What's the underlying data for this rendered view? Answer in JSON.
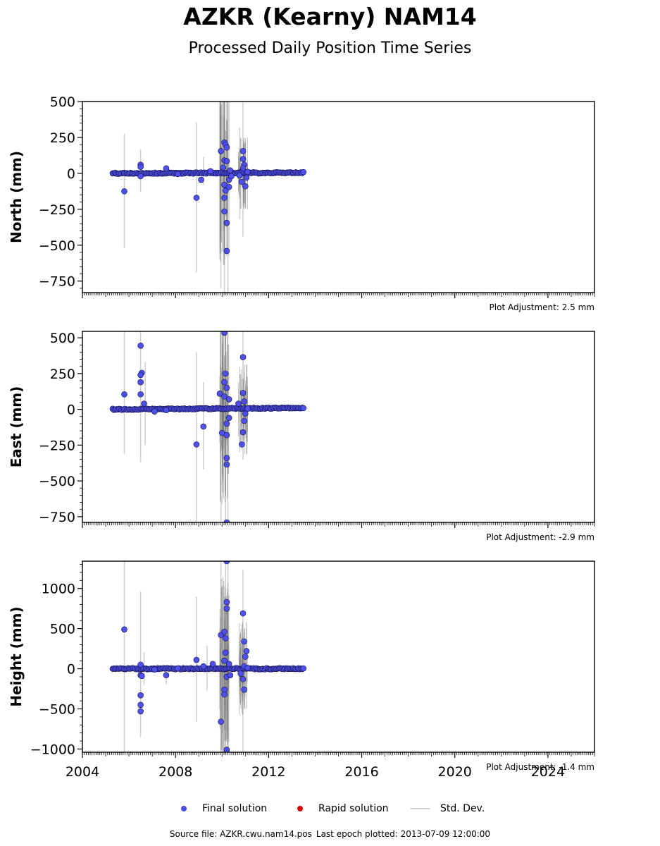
{
  "title": "AZKR (Kearny) NAM14",
  "subtitle": "Processed Daily Position Time Series",
  "legend": {
    "final_label": "Final solution",
    "rapid_label": "Rapid solution",
    "std_label": "Std. Dev.",
    "final_color": "#4a4ae6",
    "rapid_color": "#e00000",
    "std_color": "#cfcfcf"
  },
  "footer": {
    "source": "Source file: AZKR.cwu.nam14.pos",
    "last_epoch": "Last epoch plotted: 2013-07-09 12:00:00"
  },
  "colors": {
    "point_fill": "#5050f0",
    "point_edge": "#101040",
    "errbar": "#7a7a7a"
  },
  "chart_data": [
    {
      "type": "scatter",
      "name": "north",
      "ylabel": "North (mm)",
      "adjustment": "Plot Adjustment: 2.5 mm",
      "xlim": [
        2004,
        2026
      ],
      "ylim": [
        -830,
        500
      ],
      "yticks": [
        500,
        250,
        0,
        -250,
        -500,
        -750
      ],
      "ytick_labels": [
        "500",
        "250",
        "0",
        "−250",
        "−500",
        "−750"
      ],
      "series": [
        {
          "values": [
            [
              2005.8,
              -125
            ],
            [
              2006.5,
              60
            ],
            [
              2006.5,
              45
            ],
            [
              2006.5,
              -20
            ],
            [
              2007.6,
              35
            ],
            [
              2008.1,
              -5
            ],
            [
              2008.9,
              -170
            ],
            [
              2009.1,
              -45
            ],
            [
              2009.5,
              15
            ],
            [
              2009.95,
              155
            ],
            [
              2010.1,
              215
            ],
            [
              2010.15,
              200
            ],
            [
              2010.2,
              180
            ],
            [
              2010.05,
              40
            ],
            [
              2010.1,
              90
            ],
            [
              2010.2,
              85
            ],
            [
              2010.1,
              -80
            ],
            [
              2010.15,
              -120
            ],
            [
              2010.1,
              -170
            ],
            [
              2010.1,
              -265
            ],
            [
              2010.2,
              -345
            ],
            [
              2010.2,
              -540
            ],
            [
              2010.3,
              -45
            ],
            [
              2010.3,
              -95
            ],
            [
              2010.35,
              20
            ],
            [
              2010.4,
              -20
            ],
            [
              2010.9,
              155
            ],
            [
              2010.9,
              100
            ],
            [
              2010.95,
              60
            ],
            [
              2010.9,
              35
            ],
            [
              2010.85,
              -60
            ],
            [
              2011.0,
              -90
            ],
            [
              2011.05,
              -30
            ],
            [
              2010.75,
              -15
            ],
            [
              2011.1,
              10
            ]
          ]
        }
      ],
      "trend": [
        [
          2005.3,
          0
        ],
        [
          2013.5,
          5
        ]
      ],
      "std_dev_bars": [
        [
          2005.8,
          -520,
          275
        ],
        [
          2006.5,
          -130,
          165
        ],
        [
          2008.9,
          -690,
          355
        ],
        [
          2009.2,
          -80,
          115
        ],
        [
          2009.95,
          -800,
          500
        ],
        [
          2010.1,
          -830,
          500
        ],
        [
          2010.25,
          -830,
          500
        ],
        [
          2010.9,
          -440,
          500
        ],
        [
          2011.0,
          -240,
          220
        ]
      ]
    },
    {
      "type": "scatter",
      "name": "east",
      "ylabel": "East (mm)",
      "adjustment": "Plot Adjustment: -2.9 mm",
      "xlim": [
        2004,
        2026
      ],
      "ylim": [
        -790,
        545
      ],
      "yticks": [
        500,
        250,
        0,
        -250,
        -500,
        -750
      ],
      "ytick_labels": [
        "500",
        "250",
        "0",
        "−250",
        "−500",
        "−750"
      ],
      "series": [
        {
          "values": [
            [
              2005.8,
              105
            ],
            [
              2006.5,
              445
            ],
            [
              2006.55,
              255
            ],
            [
              2006.5,
              240
            ],
            [
              2006.5,
              190
            ],
            [
              2006.5,
              105
            ],
            [
              2006.65,
              40
            ],
            [
              2007.1,
              -15
            ],
            [
              2007.6,
              -5
            ],
            [
              2008.9,
              -245
            ],
            [
              2009.2,
              -120
            ],
            [
              2009.9,
              110
            ],
            [
              2010.0,
              -165
            ],
            [
              2010.1,
              535
            ],
            [
              2010.15,
              250
            ],
            [
              2010.1,
              190
            ],
            [
              2010.2,
              150
            ],
            [
              2010.1,
              90
            ],
            [
              2010.2,
              -100
            ],
            [
              2010.2,
              -180
            ],
            [
              2010.2,
              -340
            ],
            [
              2010.2,
              -385
            ],
            [
              2010.2,
              -790
            ],
            [
              2010.3,
              70
            ],
            [
              2010.3,
              -60
            ],
            [
              2010.9,
              365
            ],
            [
              2010.9,
              115
            ],
            [
              2010.95,
              55
            ],
            [
              2011.0,
              -30
            ],
            [
              2010.95,
              -80
            ],
            [
              2010.9,
              -160
            ],
            [
              2010.85,
              -245
            ],
            [
              2010.7,
              40
            ],
            [
              2011.1,
              5
            ]
          ]
        }
      ],
      "trend": [
        [
          2005.3,
          0
        ],
        [
          2013.5,
          10
        ]
      ],
      "std_dev_bars": [
        [
          2005.8,
          -310,
          545
        ],
        [
          2006.5,
          -370,
          545
        ],
        [
          2006.7,
          -250,
          330
        ],
        [
          2008.9,
          -790,
          400
        ],
        [
          2009.2,
          -420,
          190
        ],
        [
          2009.95,
          -790,
          545
        ],
        [
          2010.15,
          -790,
          545
        ],
        [
          2010.25,
          -790,
          545
        ],
        [
          2010.9,
          -350,
          545
        ]
      ]
    },
    {
      "type": "scatter",
      "name": "height",
      "ylabel": "Height (mm)",
      "xlabel_ticks": [
        "2004",
        "2008",
        "2012",
        "2016",
        "2020",
        "2024"
      ],
      "xticks": [
        2004,
        2008,
        2012,
        2016,
        2020,
        2024
      ],
      "adjustment": "Plot Adjustment: -1.4 mm",
      "xlim": [
        2004,
        2026
      ],
      "ylim": [
        -1040,
        1340
      ],
      "yticks": [
        1000,
        500,
        0,
        -500,
        -1000
      ],
      "ytick_labels": [
        "1000",
        "500",
        "0",
        "−500",
        "−1000"
      ],
      "series": [
        {
          "values": [
            [
              2005.8,
              490
            ],
            [
              2006.5,
              50
            ],
            [
              2006.5,
              -80
            ],
            [
              2006.55,
              -90
            ],
            [
              2006.5,
              -330
            ],
            [
              2006.5,
              -450
            ],
            [
              2006.5,
              -530
            ],
            [
              2007.1,
              -10
            ],
            [
              2007.6,
              -80
            ],
            [
              2008.1,
              5
            ],
            [
              2008.9,
              110
            ],
            [
              2009.2,
              30
            ],
            [
              2009.6,
              60
            ],
            [
              2009.95,
              420
            ],
            [
              2009.95,
              -660
            ],
            [
              2010.1,
              460
            ],
            [
              2010.15,
              380
            ],
            [
              2010.2,
              1340
            ],
            [
              2010.2,
              830
            ],
            [
              2010.2,
              750
            ],
            [
              2010.15,
              200
            ],
            [
              2010.1,
              100
            ],
            [
              2010.2,
              -100
            ],
            [
              2010.1,
              -260
            ],
            [
              2010.1,
              -320
            ],
            [
              2010.2,
              -1010
            ],
            [
              2010.3,
              60
            ],
            [
              2010.35,
              -80
            ],
            [
              2010.9,
              690
            ],
            [
              2010.95,
              340
            ],
            [
              2011.05,
              220
            ],
            [
              2011.0,
              150
            ],
            [
              2010.95,
              30
            ],
            [
              2010.9,
              -130
            ],
            [
              2010.95,
              -260
            ],
            [
              2010.8,
              -60
            ],
            [
              2011.1,
              10
            ]
          ]
        }
      ],
      "trend": [
        [
          2005.3,
          0
        ],
        [
          2013.5,
          0
        ]
      ],
      "std_dev_bars": [
        [
          2005.8,
          -1040,
          1340
        ],
        [
          2006.5,
          -850,
          960
        ],
        [
          2006.65,
          -200,
          200
        ],
        [
          2007.6,
          -190,
          50
        ],
        [
          2008.9,
          -660,
          900
        ],
        [
          2009.35,
          -270,
          290
        ],
        [
          2009.95,
          -1040,
          1340
        ],
        [
          2010.15,
          -1040,
          1340
        ],
        [
          2010.25,
          -1040,
          1340
        ],
        [
          2010.9,
          -1040,
          1230
        ],
        [
          2011.05,
          -300,
          580
        ]
      ]
    }
  ]
}
